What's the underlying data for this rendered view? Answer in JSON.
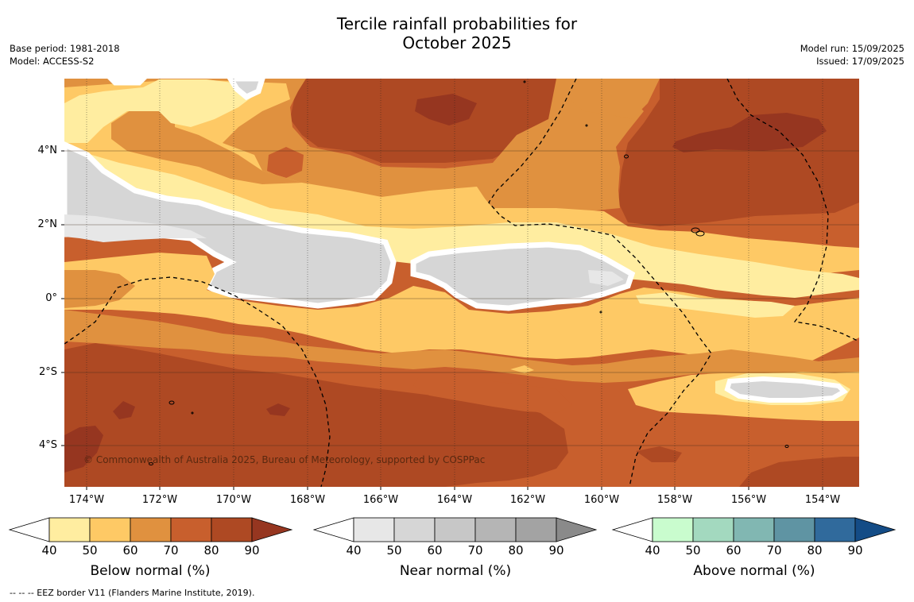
{
  "header": {
    "title_line1": "Tercile rainfall probabilities for",
    "title_line2": "October 2025",
    "base_period": "Base period: 1981-2018",
    "model": "Model: ACCESS-S2",
    "model_run": "Model run: 15/09/2025",
    "issued": "Issued: 17/09/2025"
  },
  "map": {
    "lat_labels": [
      "4°N",
      "2°N",
      "0°",
      "2°S",
      "4°S"
    ],
    "lon_labels": [
      "174°W",
      "172°W",
      "170°W",
      "168°W",
      "166°W",
      "164°W",
      "162°W",
      "160°W",
      "158°W",
      "156°W",
      "154°W"
    ],
    "copyright": "© Commonwealth of Australia 2025, Bureau of Meteorology, supported by COSPPac",
    "footnote": "--  --  -- EEZ border V11 (Flanders Marine Institute, 2019).",
    "colors": {
      "below": [
        "#ffffff",
        "#ffeda0",
        "#fec965",
        "#e0913f",
        "#c85f2d",
        "#ae4923",
        "#963620"
      ],
      "near": [
        "#ffffff",
        "#e7e7e7",
        "#d6d6d6",
        "#c7c7c7",
        "#b5b5b5",
        "#a3a3a3",
        "#8a8a8a"
      ],
      "above": [
        "#ffffff",
        "#c9fcce",
        "#a3d9bf",
        "#81b7b2",
        "#5f94a3",
        "#306a9c",
        "#144c86"
      ]
    }
  },
  "colorbars": [
    {
      "title": "Below normal (%)",
      "ticks": [
        "40",
        "50",
        "60",
        "70",
        "80",
        "90"
      ]
    },
    {
      "title": "Near normal (%)",
      "ticks": [
        "40",
        "50",
        "60",
        "70",
        "80",
        "90"
      ]
    },
    {
      "title": "Above normal (%)",
      "ticks": [
        "40",
        "50",
        "60",
        "70",
        "80",
        "90"
      ]
    }
  ]
}
